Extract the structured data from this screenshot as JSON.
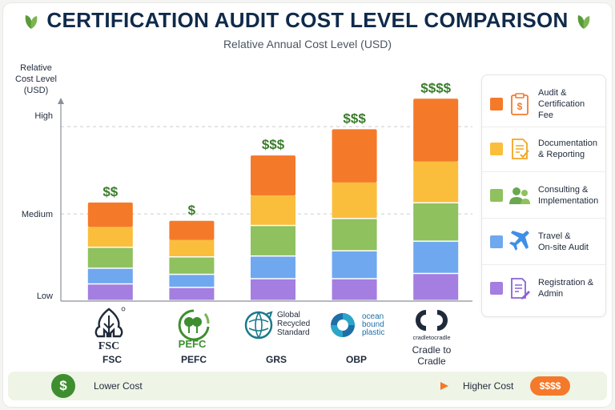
{
  "title": "CERTIFICATION AUDIT COST LEVEL COMPARISON",
  "subtitle": "Relative Annual Cost Level (USD)",
  "chart_data": {
    "type": "bar",
    "stacked": true,
    "title": "CERTIFICATION AUDIT COST LEVEL COMPARISON",
    "subtitle": "Relative Annual Cost Level (USD)",
    "ylabel": "Relative Cost Level (USD)",
    "xlabel": "",
    "y_ticks": [
      {
        "label": "Low",
        "value": 0
      },
      {
        "label": "Medium",
        "value": 1
      },
      {
        "label": "High",
        "value": 2
      }
    ],
    "ylim": [
      0,
      2.35
    ],
    "grid": true,
    "legend_position": "right",
    "categories": [
      "FSC",
      "PEFC",
      "GRS",
      "OBP",
      "Cradle to Cradle"
    ],
    "cost_labels": [
      "$$",
      "$",
      "$$$",
      "$$$",
      "$$$$"
    ],
    "series": [
      {
        "name": "Registration & Admin",
        "color": "#a47ee0",
        "values": [
          0.19,
          0.15,
          0.25,
          0.25,
          0.31
        ]
      },
      {
        "name": "Travel & On-site Audit",
        "color": "#6fa8ef",
        "values": [
          0.18,
          0.15,
          0.26,
          0.32,
          0.37
        ]
      },
      {
        "name": "Consulting & Implementation",
        "color": "#8fc15f",
        "values": [
          0.24,
          0.2,
          0.35,
          0.37,
          0.44
        ]
      },
      {
        "name": "Documentation & Reporting",
        "color": "#fbbe3c",
        "values": [
          0.24,
          0.2,
          0.35,
          0.42,
          0.48
        ]
      },
      {
        "name": "Audit & Certification Fee",
        "color": "#f47a2a",
        "values": [
          0.28,
          0.22,
          0.46,
          0.61,
          0.72
        ]
      }
    ]
  },
  "y_axis": {
    "label_lines": [
      "Relative",
      "Cost Level",
      "(USD)"
    ],
    "ticks": [
      "Low",
      "Medium",
      "High"
    ]
  },
  "legend": [
    {
      "lines": [
        "Audit &",
        "Certification",
        "Fee"
      ],
      "color": "#f47a2a",
      "icon": "clipboard-dollar-icon"
    },
    {
      "lines": [
        "Documentation",
        "& Reporting"
      ],
      "color": "#fbbe3c",
      "icon": "document-check-icon"
    },
    {
      "lines": [
        "Consulting &",
        "Implementation"
      ],
      "color": "#8fc15f",
      "icon": "people-icon"
    },
    {
      "lines": [
        "Travel &",
        "On-site Audit"
      ],
      "color": "#6fa8ef",
      "icon": "airplane-icon"
    },
    {
      "lines": [
        "Registration &",
        "Admin"
      ],
      "color": "#a47ee0",
      "icon": "form-pen-icon"
    }
  ],
  "logos": {
    "fsc": {
      "text": "FSC",
      "icon": "fsc-tree-logo"
    },
    "pefc": {
      "text": "PEFC",
      "icon": "pefc-trees-logo"
    },
    "grs": {
      "lines": [
        "Global",
        "Recycled",
        "Standard"
      ],
      "icon": "grs-globe-logo"
    },
    "obp": {
      "lines": [
        "ocean",
        "bound",
        "plastic"
      ],
      "icon": "obp-swirl-logo"
    },
    "c2c": {
      "text": "cradletocradle",
      "icon": "c2c-loops-logo"
    }
  },
  "cert_names": [
    "FSC",
    "PEFC",
    "GRS",
    "OBP"
  ],
  "cert_name_c2c": [
    "Cradle to",
    "Cradle"
  ],
  "bottom_scale": {
    "left_symbol": "$",
    "left_label": "Lower Cost",
    "right_label": "Higher Cost",
    "right_symbol": "$$$$"
  },
  "colors": {
    "title": "#0f2a4a",
    "cost_label": "#3a7d2c",
    "grid": "#c9ccd1",
    "leaf": "#5a9a3a"
  }
}
